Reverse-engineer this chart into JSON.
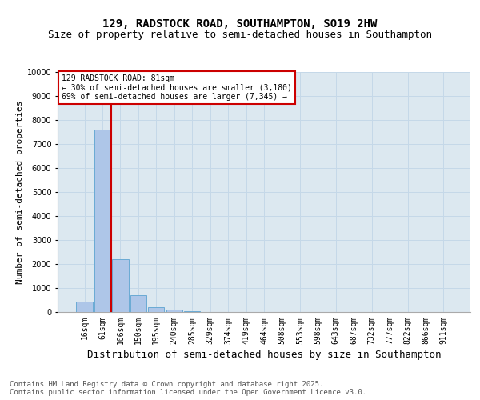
{
  "title_line1": "129, RADSTOCK ROAD, SOUTHAMPTON, SO19 2HW",
  "title_line2": "Size of property relative to semi-detached houses in Southampton",
  "xlabel": "Distribution of semi-detached houses by size in Southampton",
  "ylabel": "Number of semi-detached properties",
  "footnote": "Contains HM Land Registry data © Crown copyright and database right 2025.\nContains public sector information licensed under the Open Government Licence v3.0.",
  "bin_labels": [
    "16sqm",
    "61sqm",
    "106sqm",
    "150sqm",
    "195sqm",
    "240sqm",
    "285sqm",
    "329sqm",
    "374sqm",
    "419sqm",
    "464sqm",
    "508sqm",
    "553sqm",
    "598sqm",
    "643sqm",
    "687sqm",
    "732sqm",
    "777sqm",
    "822sqm",
    "866sqm",
    "911sqm"
  ],
  "bin_values": [
    450,
    7600,
    2200,
    700,
    200,
    100,
    30,
    10,
    5,
    2,
    1,
    1,
    1,
    0,
    0,
    0,
    0,
    0,
    0,
    0,
    0
  ],
  "bar_color": "#aec6e8",
  "bar_edge_color": "#6aaad4",
  "property_line_bin": 1.5,
  "property_size": "81sqm",
  "property_name": "129 RADSTOCK ROAD",
  "pct_smaller": 30,
  "count_smaller": 3180,
  "pct_larger": 69,
  "count_larger": 7345,
  "annotation_box_color": "#ffffff",
  "annotation_box_edge": "#cc0000",
  "red_line_color": "#cc0000",
  "ylim": [
    0,
    10000
  ],
  "yticks": [
    0,
    1000,
    2000,
    3000,
    4000,
    5000,
    6000,
    7000,
    8000,
    9000,
    10000
  ],
  "grid_color": "#c5d8e8",
  "background_color": "#dce8f0",
  "title_fontsize": 10,
  "subtitle_fontsize": 9,
  "axis_label_fontsize": 8,
  "tick_fontsize": 7,
  "annotation_fontsize": 7,
  "footnote_fontsize": 6.5
}
